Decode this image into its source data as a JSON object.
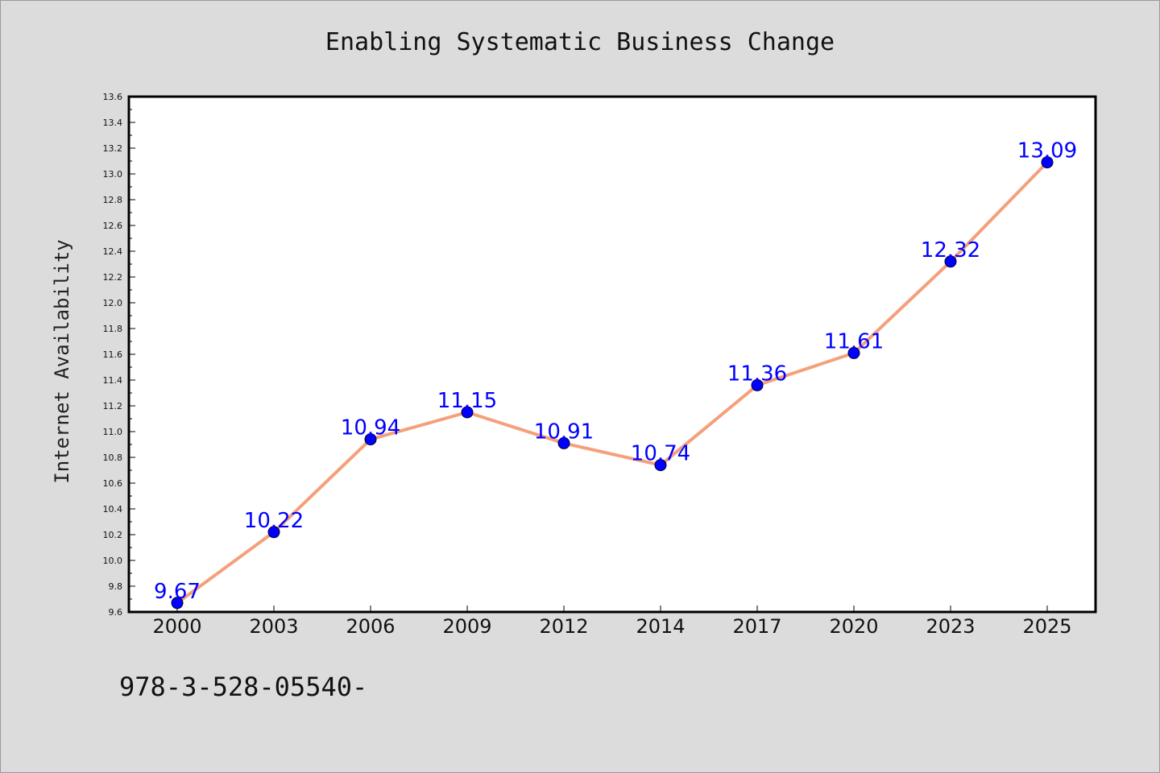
{
  "chart_data": {
    "type": "line",
    "title": "Enabling Systematic Business Change",
    "xlabel": "",
    "ylabel": "Internet Availability",
    "categories": [
      "2000",
      "2003",
      "2006",
      "2009",
      "2012",
      "2014",
      "2017",
      "2020",
      "2023",
      "2025"
    ],
    "values": [
      9.67,
      10.22,
      10.94,
      11.15,
      10.91,
      10.74,
      11.36,
      11.61,
      12.32,
      13.09
    ],
    "data_labels": [
      "9.67",
      "10.22",
      "10.94",
      "11.15",
      "10.91",
      "10.74",
      "11.36",
      "11.61",
      "12.32",
      "13.09"
    ],
    "ylim": [
      9.6,
      13.6
    ],
    "y_ticks": [
      9.6,
      9.8,
      10.0,
      10.2,
      10.4,
      10.6,
      10.8,
      11.0,
      11.2,
      11.4,
      11.6,
      11.8,
      12.0,
      12.2,
      12.4,
      12.6,
      12.8,
      13.0,
      13.2,
      13.4,
      13.6
    ],
    "y_tick_labels": [
      "9.6",
      "9.8",
      "10.0",
      "10.2",
      "10.4",
      "10.6",
      "10.8",
      "11.0",
      "11.2",
      "11.4",
      "11.6",
      "11.8",
      "12.0",
      "12.2",
      "12.4",
      "12.6",
      "12.8",
      "13.0",
      "13.2",
      "13.4",
      "13.6"
    ],
    "grid": false,
    "line_color": "#f4a07a",
    "marker_color": "#0000ff",
    "label_color": "#0000ff",
    "plot_background": "#ffffff"
  },
  "footnote": "978-3-528-05540-"
}
